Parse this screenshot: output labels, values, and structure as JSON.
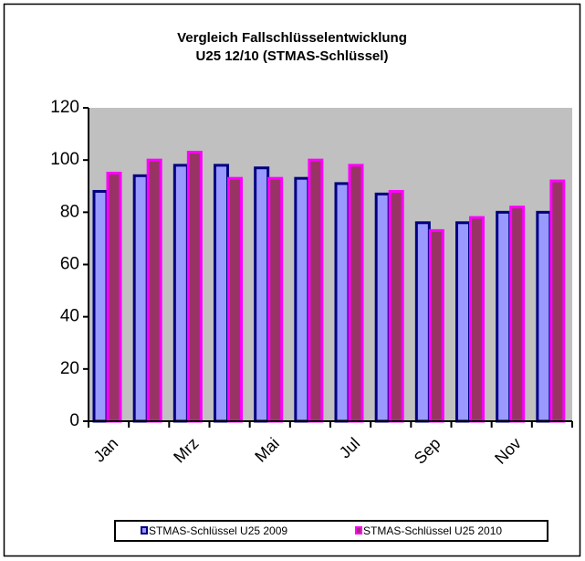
{
  "chart_data": {
    "type": "bar",
    "title": [
      "Vergleich Fallschlüsselentwicklung",
      "U25 12/10 (STMAS-Schlüssel)"
    ],
    "categories": [
      "Jan",
      null,
      "Mrz",
      null,
      "Mai",
      null,
      "Jul",
      null,
      "Sep",
      null,
      "Nov",
      null
    ],
    "series": [
      {
        "name": "STMAS-Schlüssel U25 2009",
        "color": "#9999ff",
        "edge": "#000080",
        "values": [
          88,
          94,
          98,
          98,
          97,
          93,
          91,
          87,
          76,
          76,
          80,
          80
        ]
      },
      {
        "name": "STMAS-Schlüssel U25 2010",
        "color": "#993366",
        "edge": "#ff00ff",
        "values": [
          95,
          100,
          103,
          93,
          93,
          100,
          98,
          88,
          73,
          78,
          82,
          92
        ]
      }
    ],
    "ylim": [
      0,
      120
    ],
    "yticks": [
      0,
      20,
      40,
      60,
      80,
      100,
      120
    ],
    "plot_background": "#c0c0c0",
    "legend": "bottom"
  }
}
